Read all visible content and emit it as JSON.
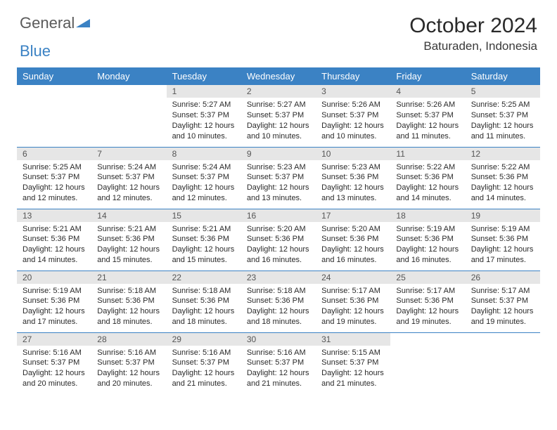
{
  "brand": {
    "word1": "General",
    "word2": "Blue",
    "accent_color": "#3b82c4",
    "text_color": "#5a5a5a"
  },
  "title": "October 2024",
  "location": "Baturaden, Indonesia",
  "colors": {
    "header_bg": "#3b82c4",
    "header_text": "#ffffff",
    "daynum_bg": "#e6e6e6",
    "divider": "#3b82c4"
  },
  "font": {
    "day_header_size": 13,
    "daynum_size": 12,
    "body_size": 11,
    "title_size": 30,
    "location_size": 17
  },
  "day_headers": [
    "Sunday",
    "Monday",
    "Tuesday",
    "Wednesday",
    "Thursday",
    "Friday",
    "Saturday"
  ],
  "weeks": [
    [
      {
        "empty": true
      },
      {
        "empty": true
      },
      {
        "num": "1",
        "sunrise": "Sunrise: 5:27 AM",
        "sunset": "Sunset: 5:37 PM",
        "daylight": "Daylight: 12 hours and 10 minutes."
      },
      {
        "num": "2",
        "sunrise": "Sunrise: 5:27 AM",
        "sunset": "Sunset: 5:37 PM",
        "daylight": "Daylight: 12 hours and 10 minutes."
      },
      {
        "num": "3",
        "sunrise": "Sunrise: 5:26 AM",
        "sunset": "Sunset: 5:37 PM",
        "daylight": "Daylight: 12 hours and 10 minutes."
      },
      {
        "num": "4",
        "sunrise": "Sunrise: 5:26 AM",
        "sunset": "Sunset: 5:37 PM",
        "daylight": "Daylight: 12 hours and 11 minutes."
      },
      {
        "num": "5",
        "sunrise": "Sunrise: 5:25 AM",
        "sunset": "Sunset: 5:37 PM",
        "daylight": "Daylight: 12 hours and 11 minutes."
      }
    ],
    [
      {
        "num": "6",
        "sunrise": "Sunrise: 5:25 AM",
        "sunset": "Sunset: 5:37 PM",
        "daylight": "Daylight: 12 hours and 12 minutes."
      },
      {
        "num": "7",
        "sunrise": "Sunrise: 5:24 AM",
        "sunset": "Sunset: 5:37 PM",
        "daylight": "Daylight: 12 hours and 12 minutes."
      },
      {
        "num": "8",
        "sunrise": "Sunrise: 5:24 AM",
        "sunset": "Sunset: 5:37 PM",
        "daylight": "Daylight: 12 hours and 12 minutes."
      },
      {
        "num": "9",
        "sunrise": "Sunrise: 5:23 AM",
        "sunset": "Sunset: 5:37 PM",
        "daylight": "Daylight: 12 hours and 13 minutes."
      },
      {
        "num": "10",
        "sunrise": "Sunrise: 5:23 AM",
        "sunset": "Sunset: 5:36 PM",
        "daylight": "Daylight: 12 hours and 13 minutes."
      },
      {
        "num": "11",
        "sunrise": "Sunrise: 5:22 AM",
        "sunset": "Sunset: 5:36 PM",
        "daylight": "Daylight: 12 hours and 14 minutes."
      },
      {
        "num": "12",
        "sunrise": "Sunrise: 5:22 AM",
        "sunset": "Sunset: 5:36 PM",
        "daylight": "Daylight: 12 hours and 14 minutes."
      }
    ],
    [
      {
        "num": "13",
        "sunrise": "Sunrise: 5:21 AM",
        "sunset": "Sunset: 5:36 PM",
        "daylight": "Daylight: 12 hours and 14 minutes."
      },
      {
        "num": "14",
        "sunrise": "Sunrise: 5:21 AM",
        "sunset": "Sunset: 5:36 PM",
        "daylight": "Daylight: 12 hours and 15 minutes."
      },
      {
        "num": "15",
        "sunrise": "Sunrise: 5:21 AM",
        "sunset": "Sunset: 5:36 PM",
        "daylight": "Daylight: 12 hours and 15 minutes."
      },
      {
        "num": "16",
        "sunrise": "Sunrise: 5:20 AM",
        "sunset": "Sunset: 5:36 PM",
        "daylight": "Daylight: 12 hours and 16 minutes."
      },
      {
        "num": "17",
        "sunrise": "Sunrise: 5:20 AM",
        "sunset": "Sunset: 5:36 PM",
        "daylight": "Daylight: 12 hours and 16 minutes."
      },
      {
        "num": "18",
        "sunrise": "Sunrise: 5:19 AM",
        "sunset": "Sunset: 5:36 PM",
        "daylight": "Daylight: 12 hours and 16 minutes."
      },
      {
        "num": "19",
        "sunrise": "Sunrise: 5:19 AM",
        "sunset": "Sunset: 5:36 PM",
        "daylight": "Daylight: 12 hours and 17 minutes."
      }
    ],
    [
      {
        "num": "20",
        "sunrise": "Sunrise: 5:19 AM",
        "sunset": "Sunset: 5:36 PM",
        "daylight": "Daylight: 12 hours and 17 minutes."
      },
      {
        "num": "21",
        "sunrise": "Sunrise: 5:18 AM",
        "sunset": "Sunset: 5:36 PM",
        "daylight": "Daylight: 12 hours and 18 minutes."
      },
      {
        "num": "22",
        "sunrise": "Sunrise: 5:18 AM",
        "sunset": "Sunset: 5:36 PM",
        "daylight": "Daylight: 12 hours and 18 minutes."
      },
      {
        "num": "23",
        "sunrise": "Sunrise: 5:18 AM",
        "sunset": "Sunset: 5:36 PM",
        "daylight": "Daylight: 12 hours and 18 minutes."
      },
      {
        "num": "24",
        "sunrise": "Sunrise: 5:17 AM",
        "sunset": "Sunset: 5:36 PM",
        "daylight": "Daylight: 12 hours and 19 minutes."
      },
      {
        "num": "25",
        "sunrise": "Sunrise: 5:17 AM",
        "sunset": "Sunset: 5:36 PM",
        "daylight": "Daylight: 12 hours and 19 minutes."
      },
      {
        "num": "26",
        "sunrise": "Sunrise: 5:17 AM",
        "sunset": "Sunset: 5:37 PM",
        "daylight": "Daylight: 12 hours and 19 minutes."
      }
    ],
    [
      {
        "num": "27",
        "sunrise": "Sunrise: 5:16 AM",
        "sunset": "Sunset: 5:37 PM",
        "daylight": "Daylight: 12 hours and 20 minutes."
      },
      {
        "num": "28",
        "sunrise": "Sunrise: 5:16 AM",
        "sunset": "Sunset: 5:37 PM",
        "daylight": "Daylight: 12 hours and 20 minutes."
      },
      {
        "num": "29",
        "sunrise": "Sunrise: 5:16 AM",
        "sunset": "Sunset: 5:37 PM",
        "daylight": "Daylight: 12 hours and 21 minutes."
      },
      {
        "num": "30",
        "sunrise": "Sunrise: 5:16 AM",
        "sunset": "Sunset: 5:37 PM",
        "daylight": "Daylight: 12 hours and 21 minutes."
      },
      {
        "num": "31",
        "sunrise": "Sunrise: 5:15 AM",
        "sunset": "Sunset: 5:37 PM",
        "daylight": "Daylight: 12 hours and 21 minutes."
      },
      {
        "empty": true
      },
      {
        "empty": true
      }
    ]
  ]
}
